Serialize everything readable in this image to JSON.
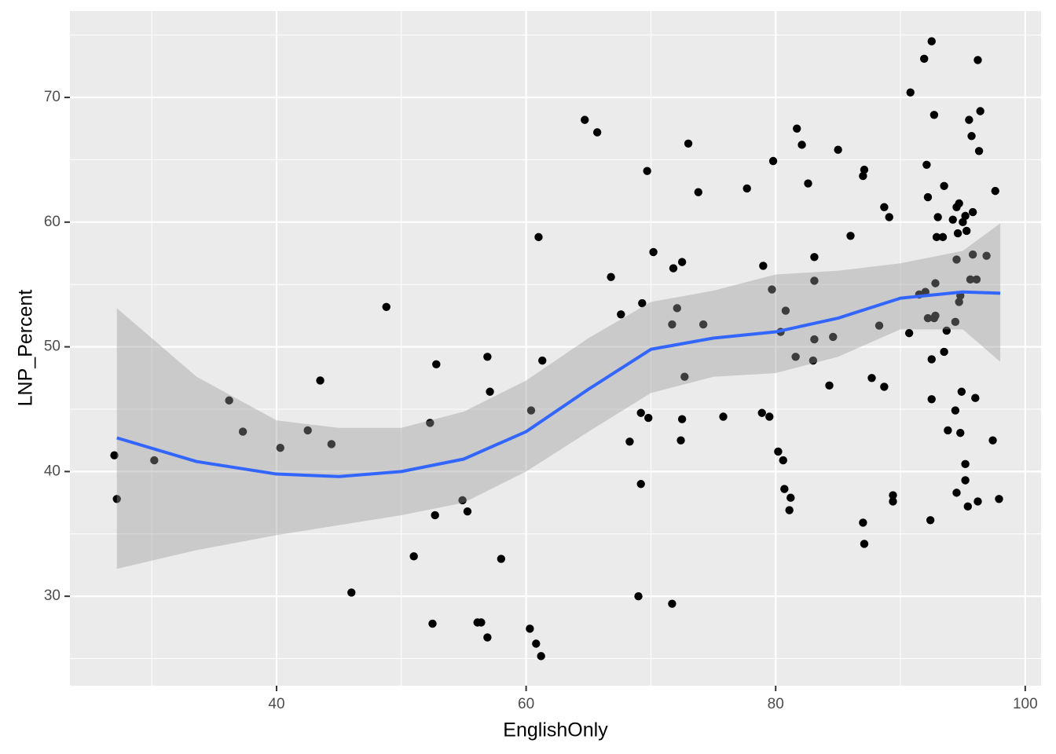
{
  "chart_data": {
    "type": "scatter",
    "x_label": "EnglishOnly",
    "y_label": "LNP_Percent",
    "xlim": [
      23.44,
      101.27
    ],
    "ylim": [
      22.83,
      76.93
    ],
    "xticks": [
      40,
      60,
      80,
      100
    ],
    "yticks": [
      30,
      40,
      50,
      60,
      70
    ],
    "xminorticks": [
      30,
      50,
      70,
      90
    ],
    "yminorticks": [
      25,
      35,
      45,
      55,
      65,
      75
    ],
    "grid": true,
    "color": "#000000",
    "x": [
      27.0,
      27.2,
      30.2,
      36.2,
      37.3,
      40.3,
      42.5,
      43.5,
      44.4,
      46.0,
      48.8,
      51.0,
      52.3,
      52.5,
      52.8,
      52.7,
      54.9,
      55.3,
      56.1,
      56.4,
      56.9,
      56.9,
      57.1,
      58.0,
      60.3,
      60.4,
      60.8,
      61.0,
      61.2,
      61.3,
      64.7,
      65.7,
      66.8,
      67.6,
      68.3,
      69.0,
      69.2,
      69.2,
      69.3,
      69.7,
      69.8,
      70.2,
      71.7,
      71.7,
      71.8,
      72.1,
      72.4,
      72.5,
      72.5,
      72.7,
      73.0,
      73.8,
      74.2,
      75.8,
      77.7,
      78.9,
      79.0,
      79.5,
      79.7,
      79.8,
      80.2,
      80.4,
      80.6,
      80.7,
      80.8,
      81.1,
      81.2,
      81.6,
      81.7,
      82.1,
      82.6,
      83.0,
      83.1,
      83.1,
      83.1,
      84.3,
      84.6,
      85.0,
      86.0,
      87.0,
      87.1,
      87.1,
      87.0,
      87.7,
      88.3,
      88.7,
      88.7,
      89.1,
      89.4,
      89.4,
      90.7,
      90.8,
      91.5,
      91.9,
      92.0,
      92.1,
      92.2,
      92.2,
      92.4,
      92.5,
      92.5,
      92.5,
      92.7,
      92.8,
      92.7,
      92.8,
      92.9,
      93.0,
      93.4,
      93.5,
      93.5,
      93.7,
      93.8,
      94.2,
      94.4,
      94.4,
      94.5,
      94.5,
      94.5,
      94.6,
      94.7,
      94.7,
      94.8,
      94.8,
      94.9,
      95.0,
      95.2,
      95.2,
      95.2,
      95.3,
      95.4,
      95.5,
      95.6,
      95.7,
      95.8,
      95.8,
      96.0,
      96.1,
      96.2,
      96.2,
      96.3,
      96.4,
      96.9,
      97.4,
      97.6,
      97.9
    ],
    "values": [
      41.3,
      37.8,
      40.9,
      45.7,
      43.2,
      41.9,
      43.3,
      47.3,
      42.2,
      30.3,
      53.2,
      33.2,
      43.9,
      27.8,
      48.6,
      36.5,
      37.7,
      36.8,
      27.9,
      27.9,
      49.2,
      26.7,
      46.4,
      33.0,
      27.4,
      44.9,
      26.2,
      58.8,
      25.2,
      48.9,
      68.2,
      67.2,
      55.6,
      52.6,
      42.4,
      30.0,
      44.7,
      39.0,
      53.5,
      64.1,
      44.3,
      57.6,
      51.8,
      29.4,
      56.3,
      53.1,
      42.5,
      44.2,
      56.8,
      47.6,
      66.3,
      62.4,
      51.8,
      44.4,
      62.7,
      44.7,
      56.5,
      44.4,
      54.6,
      64.9,
      41.6,
      51.2,
      40.9,
      38.6,
      52.9,
      36.9,
      37.9,
      49.2,
      67.5,
      66.2,
      63.1,
      48.9,
      50.6,
      55.3,
      57.2,
      46.9,
      50.8,
      65.8,
      58.9,
      35.9,
      34.2,
      64.2,
      63.7,
      47.5,
      51.7,
      46.8,
      61.2,
      60.4,
      38.1,
      37.6,
      51.1,
      70.4,
      54.2,
      73.1,
      54.4,
      64.6,
      52.3,
      62.0,
      36.1,
      74.5,
      49.0,
      45.8,
      52.3,
      52.5,
      68.6,
      55.1,
      58.8,
      60.4,
      58.8,
      62.9,
      49.6,
      51.3,
      43.3,
      60.2,
      52.0,
      44.9,
      38.3,
      57.0,
      61.2,
      59.1,
      61.5,
      53.6,
      43.1,
      54.1,
      46.4,
      60.0,
      40.6,
      39.3,
      60.5,
      59.3,
      37.2,
      68.2,
      55.4,
      66.9,
      57.4,
      60.8,
      45.9,
      55.4,
      73.0,
      37.6,
      65.7,
      68.9,
      57.3,
      42.5,
      62.5,
      37.8
    ],
    "smooth": {
      "color": "#3366ff",
      "fill": "#999999",
      "x": [
        27.2,
        33.6,
        40,
        45,
        50,
        55,
        60,
        65,
        70,
        75,
        80,
        85,
        90,
        95,
        98
      ],
      "values": [
        42.7,
        40.8,
        39.8,
        39.6,
        40.0,
        41.0,
        43.2,
        46.6,
        49.8,
        50.7,
        51.2,
        52.3,
        53.9,
        54.4,
        54.3
      ],
      "lower": [
        32.2,
        33.7,
        34.9,
        35.7,
        36.5,
        37.5,
        40.0,
        43.2,
        46.3,
        47.6,
        47.9,
        49.2,
        51.4,
        51.4,
        48.8
      ],
      "upper": [
        53.1,
        47.6,
        44.1,
        43.5,
        43.5,
        44.8,
        47.3,
        50.7,
        53.6,
        54.5,
        55.8,
        56.1,
        56.7,
        57.7,
        59.9
      ]
    }
  }
}
